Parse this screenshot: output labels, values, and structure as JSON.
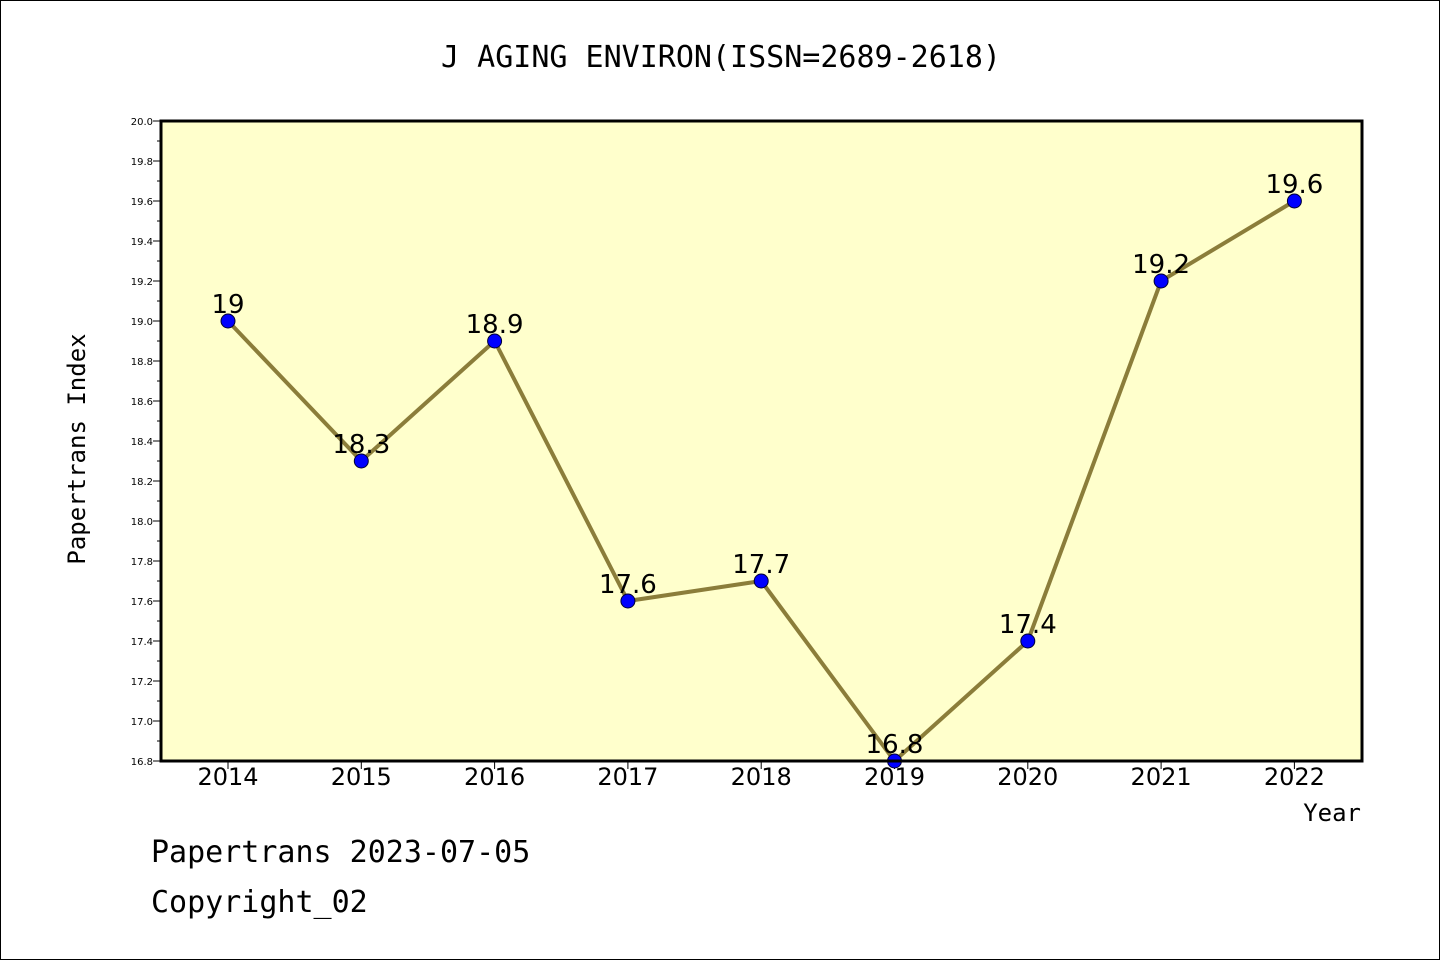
{
  "chart_data": {
    "type": "line",
    "title": "J AGING ENVIRON(ISSN=2689-2618)",
    "xlabel": "Year",
    "ylabel": "Papertrans Index",
    "categories": [
      "2014",
      "2015",
      "2016",
      "2017",
      "2018",
      "2019",
      "2020",
      "2021",
      "2022"
    ],
    "values": [
      19,
      18.3,
      18.9,
      17.6,
      17.7,
      16.8,
      17.4,
      19.2,
      19.6
    ],
    "data_labels": [
      "19",
      "18.3",
      "18.9",
      "17.6",
      "17.7",
      "16.8",
      "17.4",
      "19.2",
      "19.6"
    ],
    "y_ticks": [
      "16.8",
      "17.0",
      "17.2",
      "17.4",
      "17.6",
      "17.8",
      "18.0",
      "18.2",
      "18.4",
      "18.6",
      "18.8",
      "19.0",
      "19.2",
      "19.4",
      "19.6",
      "19.8",
      "20.0"
    ],
    "ylim": [
      16.8,
      20.0
    ],
    "grid": false,
    "colors": {
      "plot_background": "#ffffcc",
      "line": "#8b7d3a",
      "marker": "#0000ff"
    }
  },
  "footer": {
    "line1": "Papertrans 2023-07-05",
    "line2": "Copyright_02"
  }
}
